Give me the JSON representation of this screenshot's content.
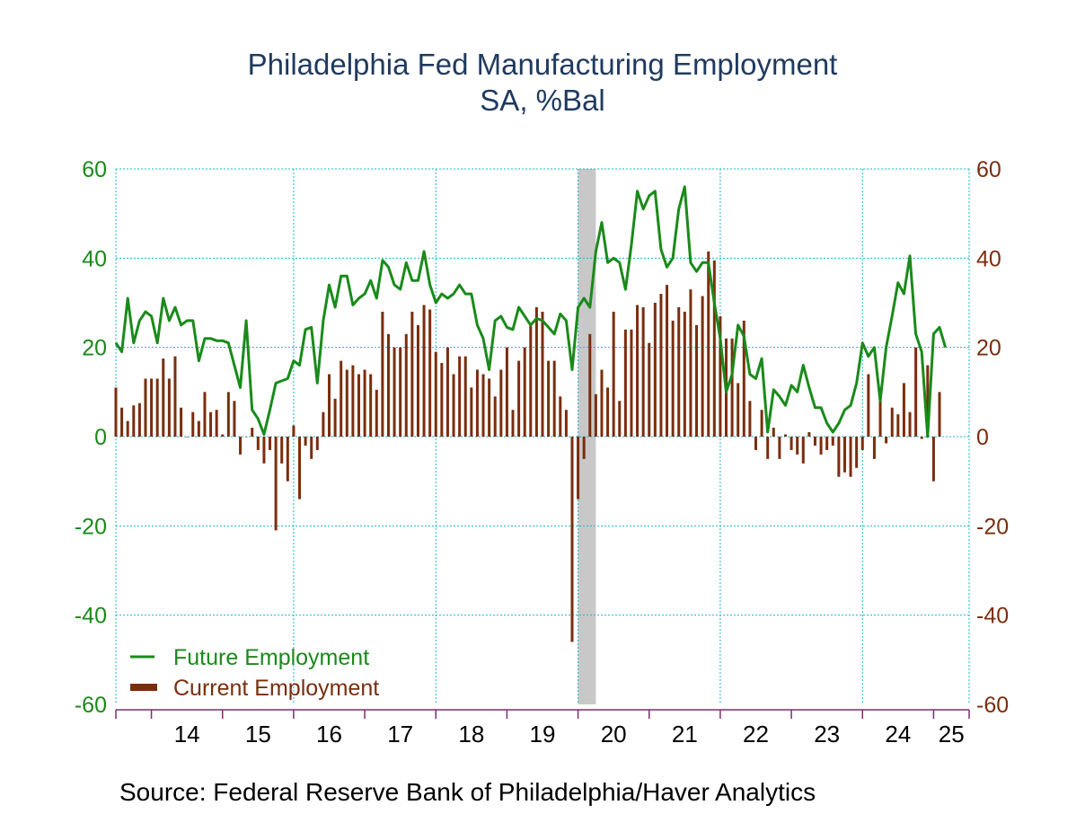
{
  "chart_data": {
    "type": "bar+line",
    "title": "Philadelphia Fed Manufacturing Employment",
    "subtitle": "SA, %Bal",
    "source": "Source:  Federal Reserve Bank of Philadelphia/Haver Analytics",
    "ylim": [
      -60,
      60
    ],
    "yticks": [
      60,
      40,
      20,
      0,
      -20,
      -40,
      -60
    ],
    "ytick_labels": [
      "60",
      "40",
      "20",
      "0",
      "-20",
      "-40",
      "-60"
    ],
    "xlim": [
      2013.5,
      2025.5
    ],
    "xtick_labels": [
      "14",
      "15",
      "16",
      "17",
      "18",
      "19",
      "20",
      "21",
      "22",
      "23",
      "24",
      "25"
    ],
    "grid": true,
    "legend_position": "bottom-left",
    "recession_shading": [
      2020.0,
      2020.25
    ],
    "colors": {
      "future": "#1a8a1a",
      "current": "#7a2e0e",
      "title": "#1f3a5f",
      "left_axis": "#1a8a1a",
      "right_axis": "#7a2e0e",
      "grid": "#1fb5c8",
      "recession": "#c8c8c8"
    },
    "series": [
      {
        "name": "Future Employment",
        "kind": "line",
        "start": "2013-07",
        "values": [
          21,
          19,
          31,
          21,
          26,
          28,
          27,
          21,
          31,
          26,
          29,
          25,
          26,
          26,
          17,
          22,
          22,
          21.5,
          21.5,
          21,
          16,
          11,
          26,
          6,
          4,
          0.5,
          6,
          12,
          12.5,
          13,
          17,
          16,
          24,
          24.5,
          12,
          26,
          34,
          29,
          36,
          36,
          29.5,
          31,
          32,
          35,
          31,
          39.5,
          38,
          34,
          33,
          39,
          35,
          35,
          41.5,
          34,
          30,
          32,
          31,
          32,
          34,
          32,
          32,
          25,
          22,
          15,
          26,
          27,
          24.5,
          24,
          29,
          27,
          25,
          26.5,
          26,
          24.5,
          23,
          27.5,
          26,
          15,
          29,
          31,
          29,
          41.5,
          48,
          39,
          40,
          39,
          33,
          43,
          55,
          51,
          54,
          55,
          42,
          38,
          40,
          51,
          56,
          39,
          37,
          39,
          39,
          30,
          22,
          10,
          14,
          25,
          22.5,
          14,
          13,
          17.5,
          1,
          10.5,
          9,
          7,
          11.5,
          10,
          16,
          11,
          6.5,
          6.5,
          3,
          1,
          3,
          6,
          7,
          12,
          21,
          18,
          20,
          8,
          20,
          27,
          34.5,
          32,
          40.5,
          23,
          19,
          0,
          23,
          24.5,
          20
        ]
      },
      {
        "name": "Current Employment",
        "kind": "bar",
        "start": "2013-07",
        "values": [
          11,
          6.5,
          3.5,
          7,
          7.5,
          13,
          13,
          13,
          17.5,
          13,
          18,
          6.5,
          0,
          5.5,
          3.5,
          10,
          5.5,
          6,
          0.5,
          10,
          8,
          -4,
          0,
          2,
          -3,
          -6,
          -3,
          -21,
          -6,
          -10,
          2.5,
          -14,
          -2,
          -5,
          -3,
          5.5,
          14,
          8.5,
          17,
          15,
          16,
          14,
          15,
          14,
          10.5,
          28,
          23,
          20,
          20,
          23,
          28,
          25,
          29.5,
          28.5,
          19,
          16.5,
          20,
          14,
          18,
          18,
          11,
          15,
          14,
          13,
          9,
          15,
          20,
          6,
          17,
          20,
          25,
          29,
          28,
          17,
          17,
          9,
          6,
          -46,
          -14,
          -5,
          23,
          9.5,
          15,
          11,
          28,
          8,
          24,
          24,
          29.5,
          29,
          21,
          30,
          32,
          34,
          26,
          29,
          28,
          33,
          25,
          31.5,
          41.5,
          39.5,
          27,
          22,
          22,
          12,
          26,
          8,
          -3,
          6,
          -5,
          2,
          -5,
          0.5,
          -3,
          -4,
          -6,
          1,
          -2,
          -4,
          -3,
          -2,
          -9,
          -8,
          -9,
          -7,
          -3,
          14,
          -5,
          11,
          -1.5,
          6.5,
          5,
          12,
          5.5,
          20,
          -0.5,
          16,
          -10,
          10
        ]
      }
    ]
  }
}
